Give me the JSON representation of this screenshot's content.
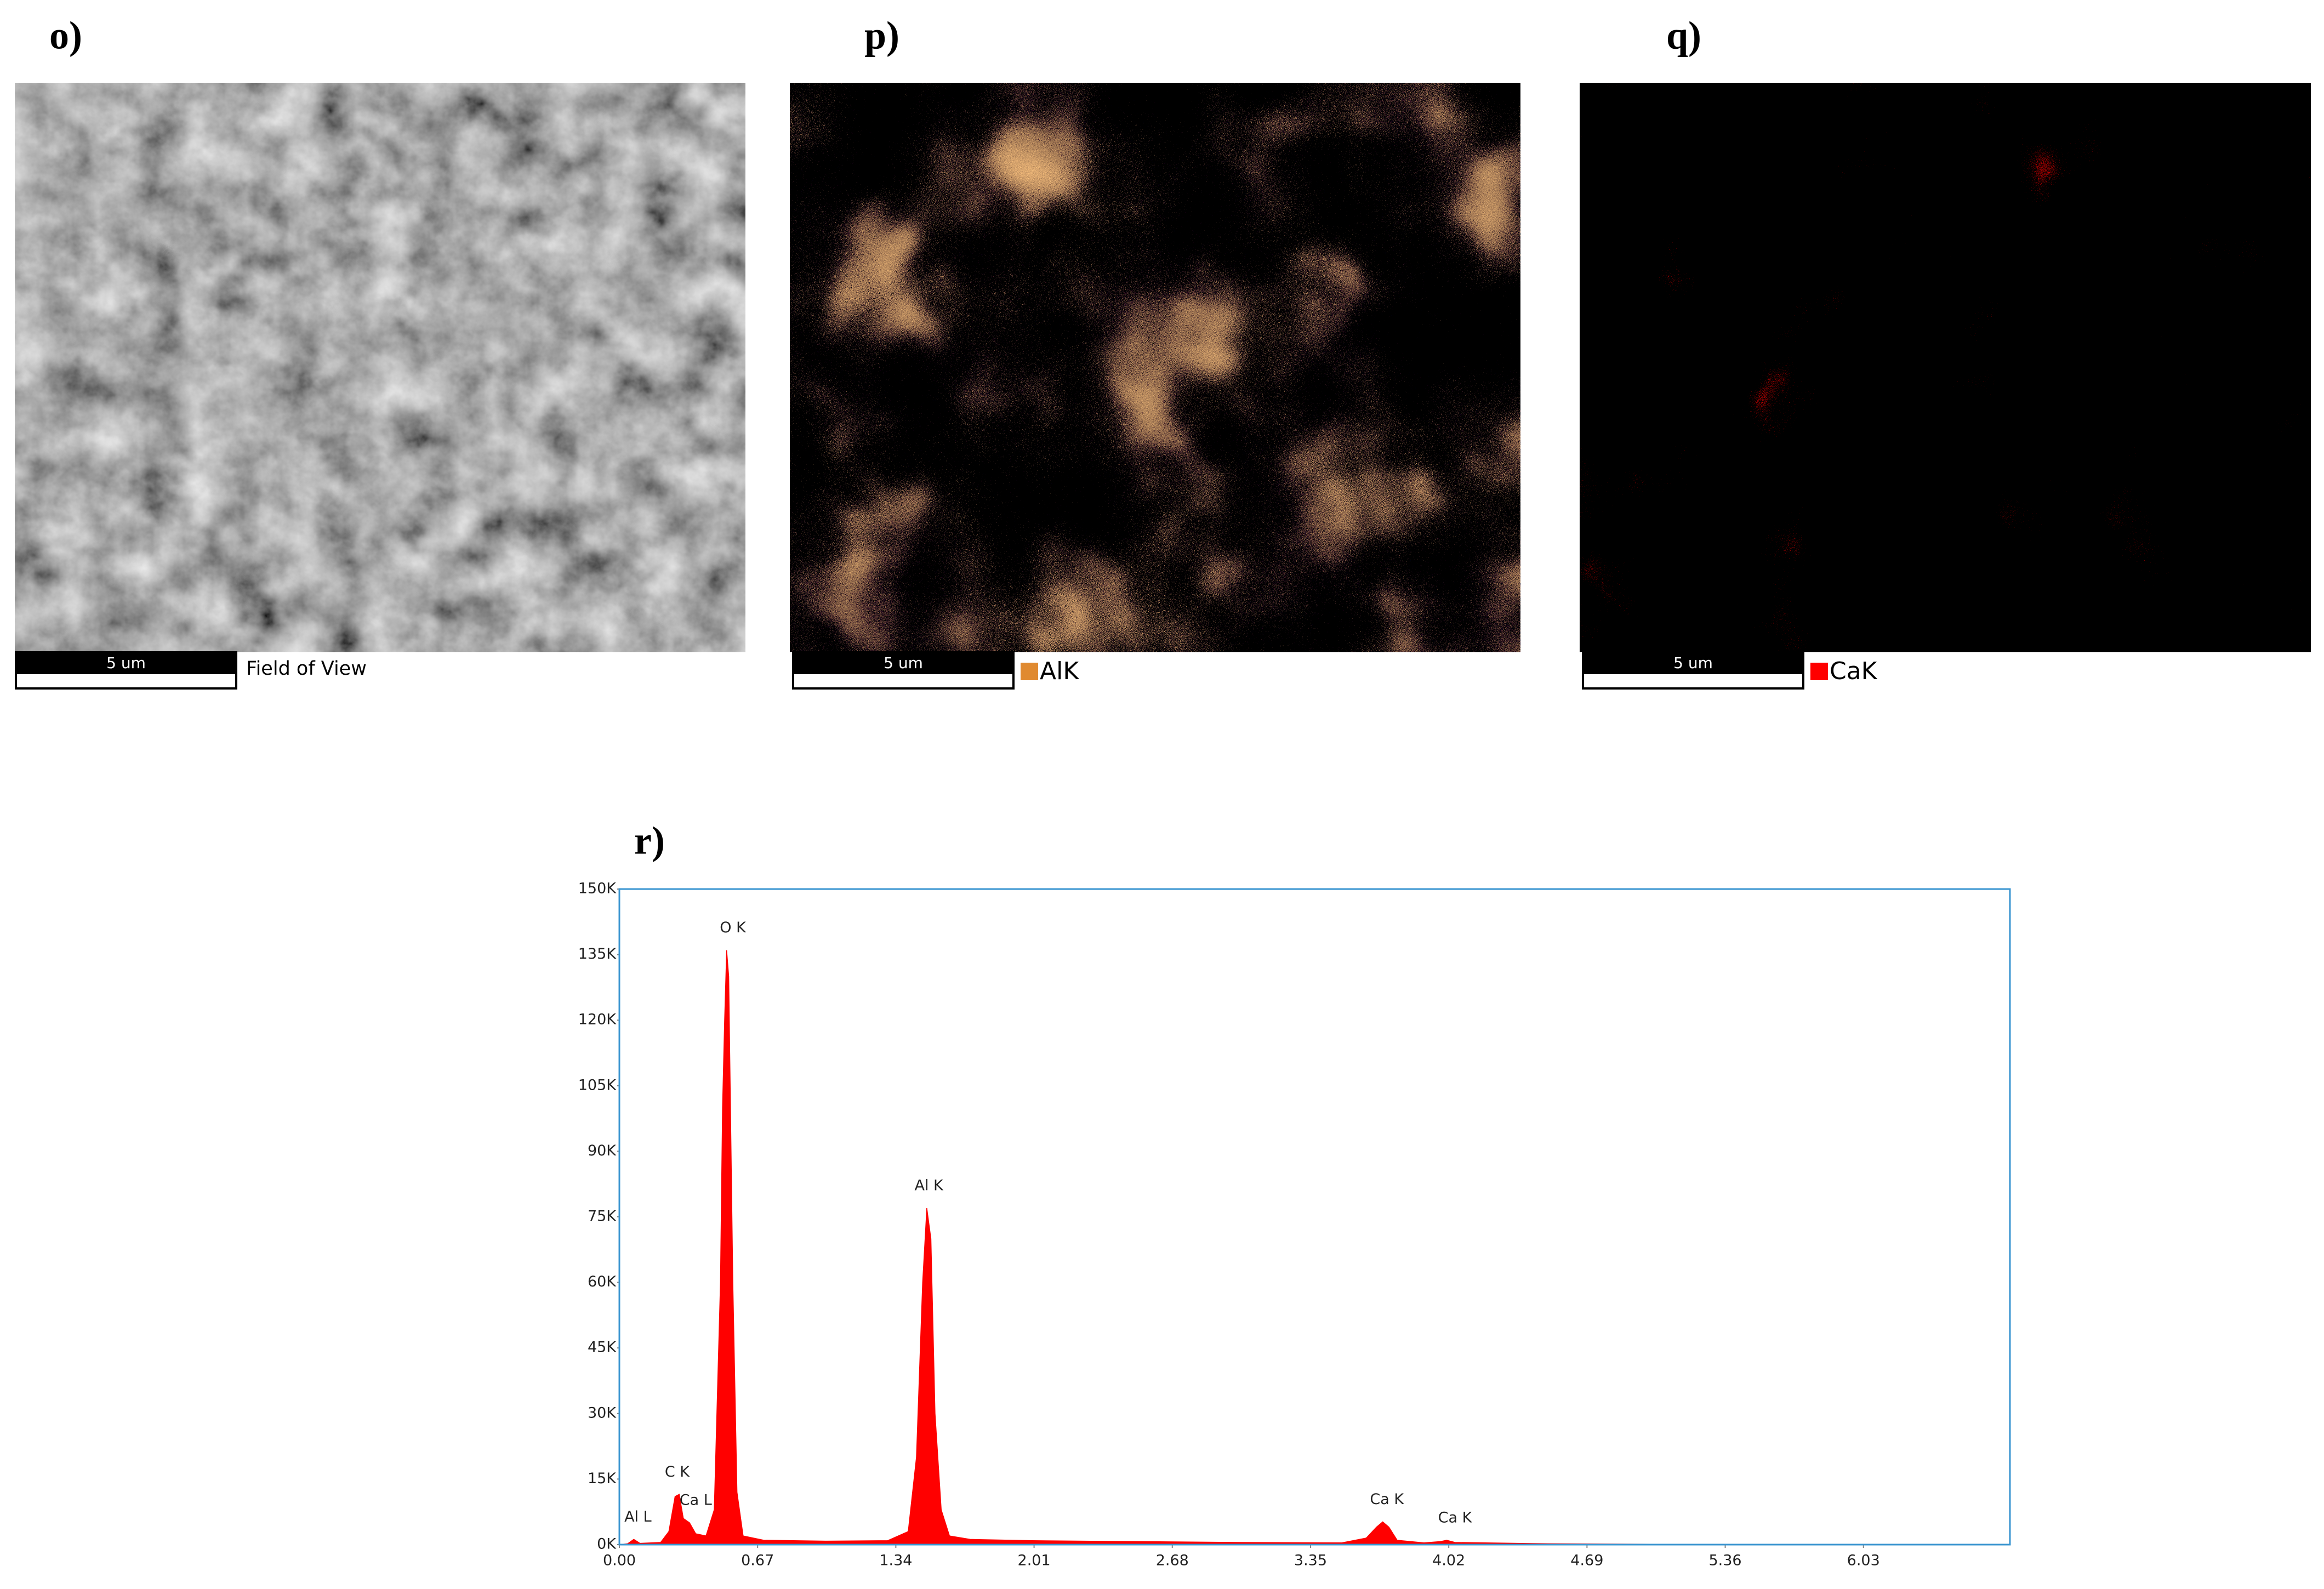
{
  "panels": [
    {
      "label": "o)",
      "scale_bar": "5 um",
      "caption": "Field of View"
    },
    {
      "label": "p)",
      "scale_bar": "5 um",
      "legend": "AlK",
      "legend_color": "#e08a30"
    },
    {
      "label": "q)",
      "scale_bar": "5 um",
      "legend": "CaK",
      "legend_color": "#ff0000"
    }
  ],
  "chart_data": {
    "type": "area",
    "panel_label": "r)",
    "x": [
      0,
      0.04,
      0.07,
      0.1,
      0.2,
      0.24,
      0.27,
      0.29,
      0.31,
      0.34,
      0.37,
      0.42,
      0.46,
      0.49,
      0.5,
      0.51,
      0.52,
      0.53,
      0.55,
      0.57,
      0.6,
      0.7,
      1.0,
      1.3,
      1.4,
      1.44,
      1.47,
      1.49,
      1.51,
      1.53,
      1.56,
      1.6,
      1.7,
      2.0,
      2.5,
      3.0,
      3.5,
      3.62,
      3.67,
      3.7,
      3.73,
      3.77,
      3.9,
      3.98,
      4.01,
      4.05,
      4.5,
      5.0,
      6.0,
      6.74
    ],
    "values": [
      0,
      200,
      1200,
      300,
      500,
      3000,
      11000,
      11500,
      6000,
      5000,
      2500,
      2000,
      8000,
      60000,
      100000,
      120000,
      136000,
      130000,
      60000,
      12000,
      2000,
      1000,
      800,
      900,
      3000,
      20000,
      60000,
      77000,
      70000,
      30000,
      8000,
      2000,
      1200,
      900,
      700,
      500,
      400,
      1500,
      4000,
      5200,
      4000,
      1000,
      400,
      700,
      1000,
      500,
      200,
      100,
      50,
      0
    ],
    "color": "#ff0000",
    "xlim": [
      0,
      6.74
    ],
    "ylim": [
      0,
      150000
    ],
    "xticks": [
      {
        "value": 0,
        "label": "0.00"
      },
      0.67,
      1.34,
      2.01,
      2.68,
      3.35,
      4.02,
      4.69,
      5.36,
      6.03
    ],
    "yticks": [
      {
        "value": 0,
        "label": "0K"
      },
      {
        "value": 15000,
        "label": "15K"
      },
      {
        "value": 30000,
        "label": "30K"
      },
      {
        "value": 45000,
        "label": "45K"
      },
      {
        "value": 60000,
        "label": "60K"
      },
      {
        "value": 75000,
        "label": "75K"
      },
      {
        "value": 90000,
        "label": "90K"
      },
      {
        "value": 105000,
        "label": "105K"
      },
      {
        "value": 120000,
        "label": "120K"
      },
      {
        "value": 135000,
        "label": "135K"
      },
      {
        "value": 150000,
        "label": "150K"
      }
    ],
    "annotations": [
      {
        "text": "Al L",
        "x": 0.09
      },
      {
        "text": "C K",
        "x": 0.28
      },
      {
        "text": "Ca L",
        "x": 0.37
      },
      {
        "text": "O K",
        "x": 0.55
      },
      {
        "text": "Al K",
        "x": 1.5
      },
      {
        "text": "Ca K",
        "x": 3.72
      },
      {
        "text": "Ca K",
        "x": 4.05
      }
    ]
  }
}
